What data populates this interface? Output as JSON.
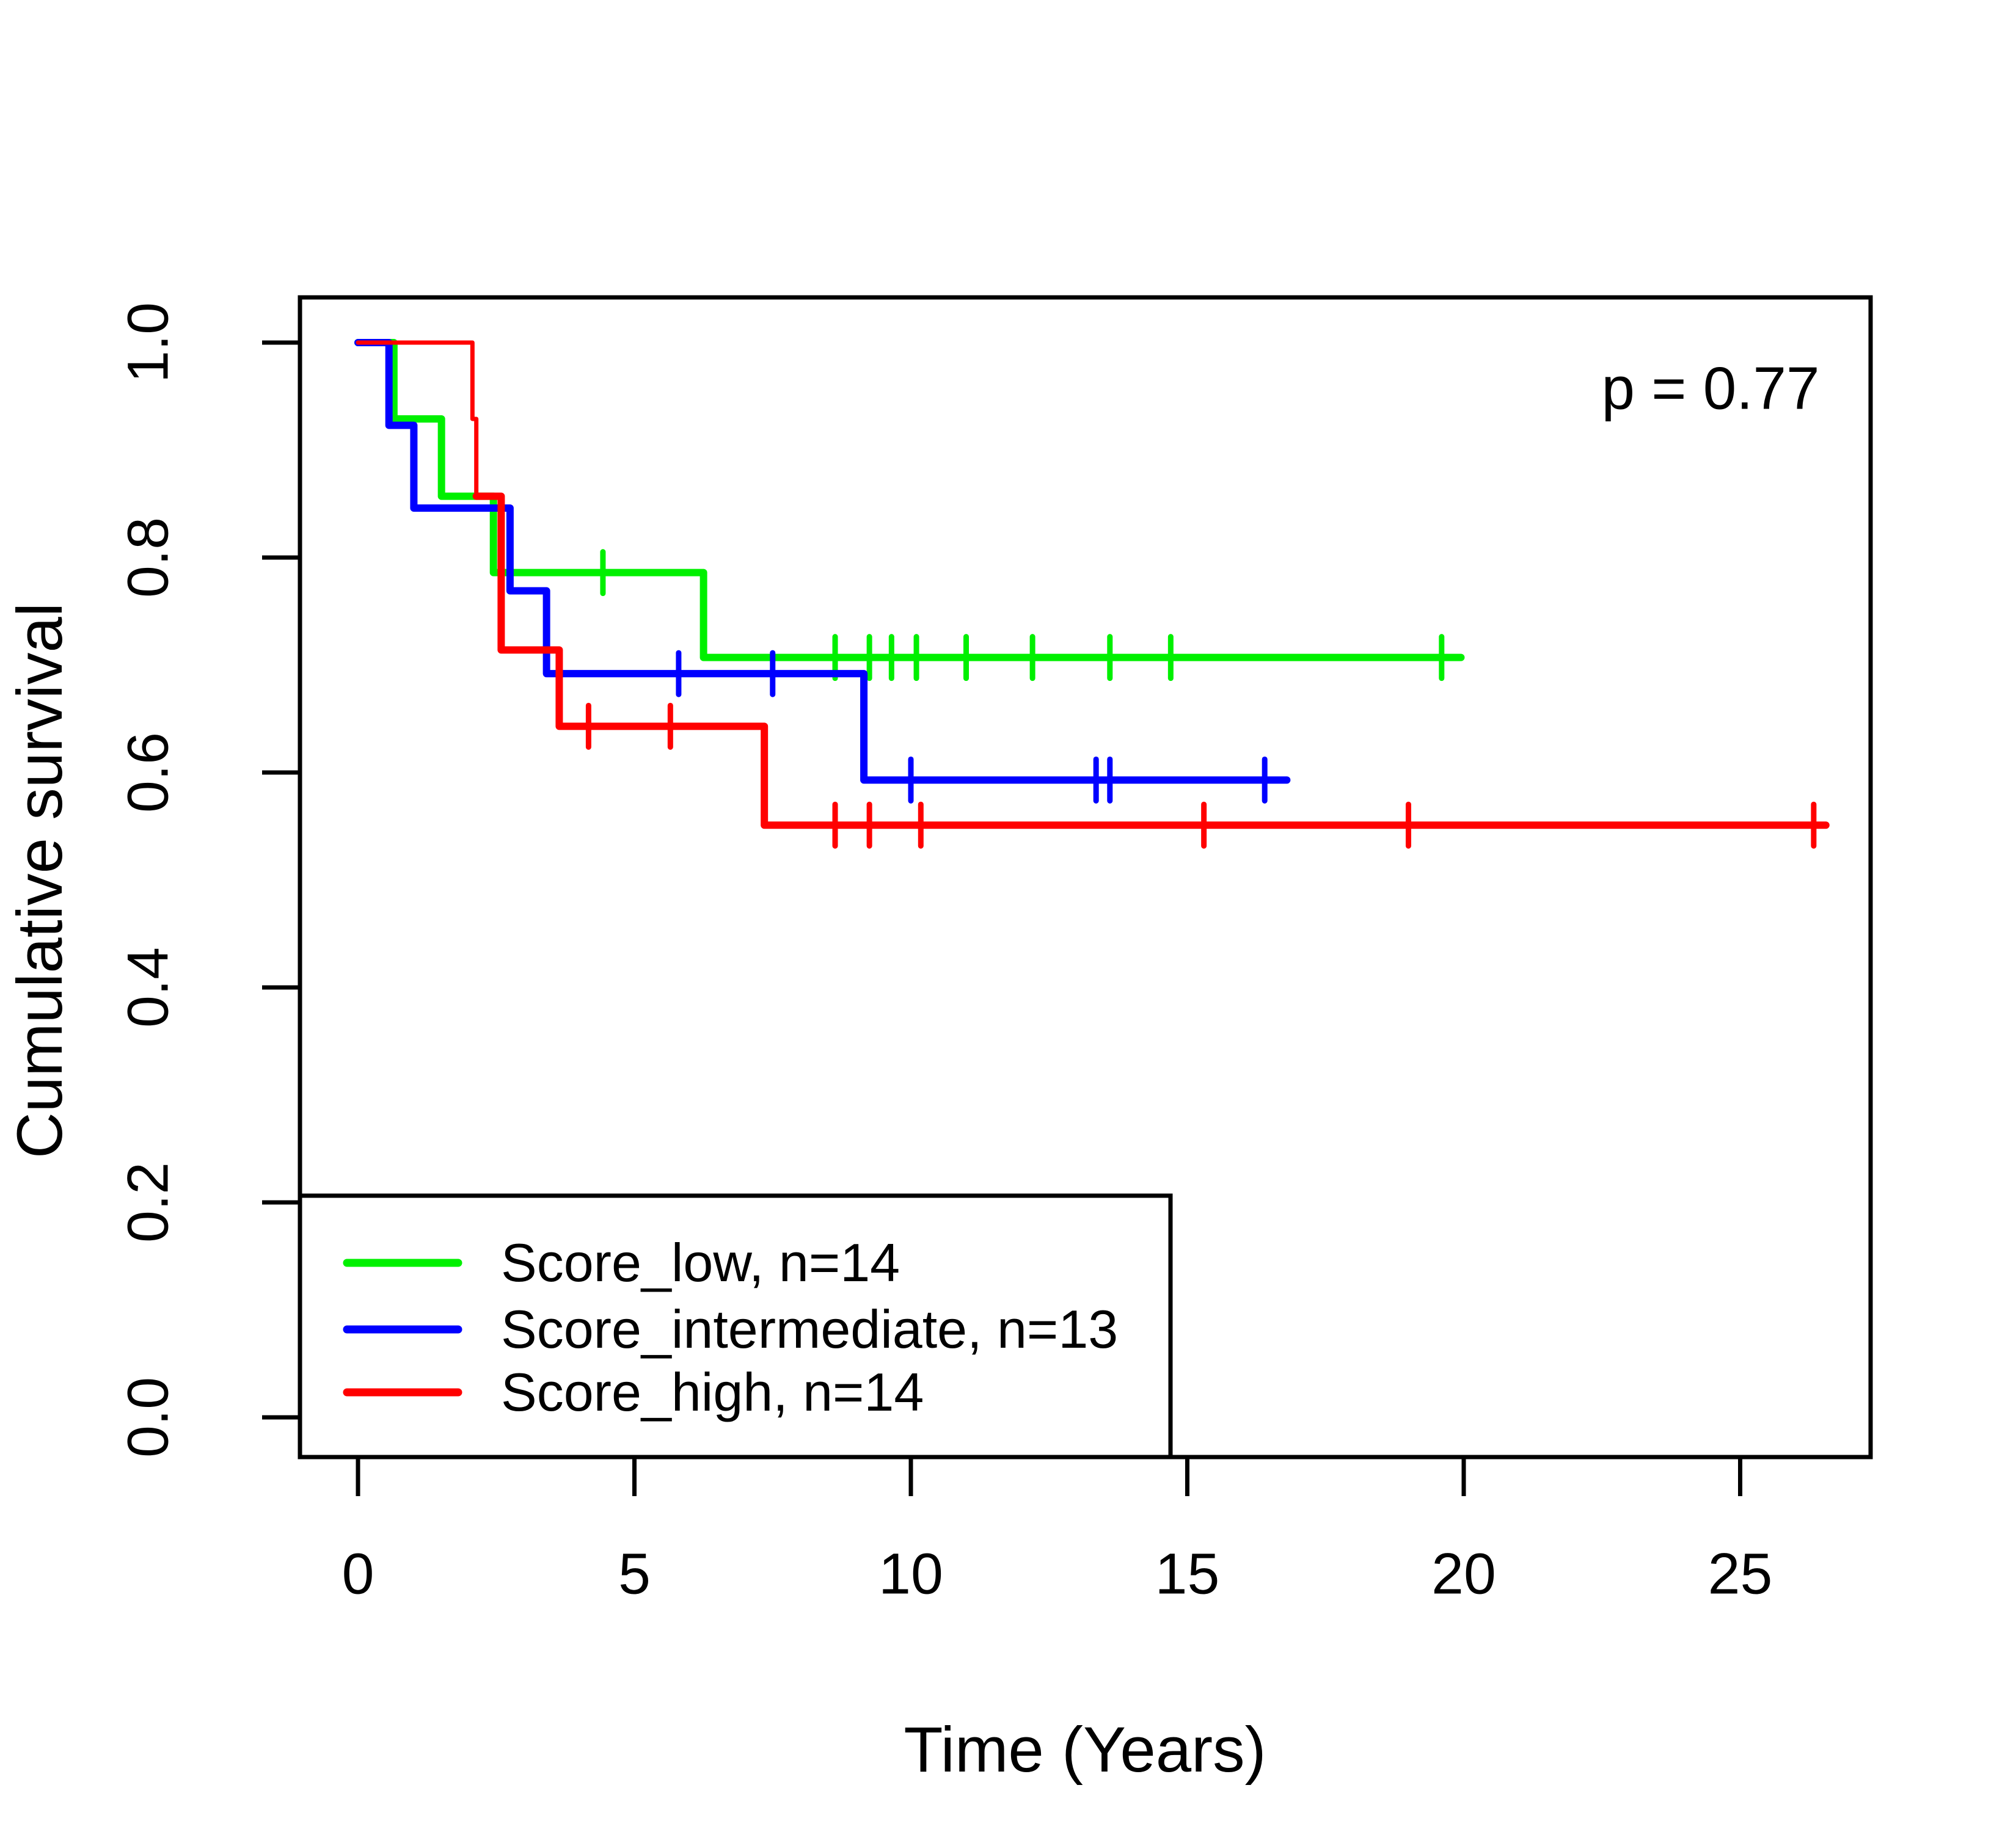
{
  "chart_data": {
    "type": "line",
    "subtype": "kaplan-meier-step-curves",
    "title": "",
    "xlabel": "Time (Years)",
    "ylabel": "Cumulative survival",
    "annotation": "p = 0.77",
    "grid": false,
    "legend_position": "bottom-left",
    "xlim": [
      0,
      27.4
    ],
    "ylim": [
      0.0,
      1.04
    ],
    "x_ticks": [
      {
        "label": "0",
        "value": 0
      },
      {
        "label": "5",
        "value": 5
      },
      {
        "label": "10",
        "value": 10
      },
      {
        "label": "15",
        "value": 15
      },
      {
        "label": "20",
        "value": 20
      },
      {
        "label": "25",
        "value": 25
      }
    ],
    "y_ticks": [
      {
        "label": "1.0",
        "value": 1.0
      },
      {
        "label": "0.8",
        "value": 0.8
      },
      {
        "label": "0.6",
        "value": 0.6
      },
      {
        "label": "0.4",
        "value": 0.4
      },
      {
        "label": "0.2",
        "value": 0.2
      },
      {
        "label": "0.0",
        "value": 0.0
      }
    ],
    "series": [
      {
        "key": "score-low",
        "name": "Score_low, n=14",
        "n": 14,
        "color": "#00f000",
        "start": [
          0,
          1.0
        ],
        "events": [
          [
            0.65,
            0.929
          ],
          [
            1.51,
            0.857
          ],
          [
            2.45,
            0.786
          ],
          [
            6.25,
            0.707
          ]
        ],
        "censors": [
          4.43,
          8.63,
          9.25,
          9.65,
          10.1,
          11.0,
          12.2,
          13.6,
          14.7,
          19.6
        ],
        "end_time": 19.95
      },
      {
        "key": "score-intermediate",
        "name": "Score_intermediate, n=13",
        "n": 13,
        "color": "#0000ff",
        "start": [
          0,
          1.0
        ],
        "events": [
          [
            0.56,
            0.923
          ],
          [
            1.01,
            0.846
          ],
          [
            2.75,
            0.769
          ],
          [
            3.41,
            0.692
          ],
          [
            9.15,
            0.593
          ]
        ],
        "censors": [
          5.8,
          7.5,
          10.0,
          13.35,
          13.6,
          16.4
        ],
        "end_time": 16.8
      },
      {
        "key": "score-high",
        "name": "Score_high, n=14",
        "n": 14,
        "color": "#ff0000",
        "start": [
          0,
          1.0
        ],
        "thin_events": [
          [
            2.07,
            0.929
          ],
          [
            2.14,
            0.857
          ]
        ],
        "events": [
          [
            2.59,
            0.714
          ],
          [
            3.64,
            0.643
          ],
          [
            7.35,
            0.551
          ]
        ],
        "censors": [
          4.17,
          5.65,
          8.63,
          9.25,
          10.18,
          15.3,
          19.0,
          26.33
        ],
        "end_time": 26.55
      }
    ]
  },
  "annotations": {
    "p_value": "p = 0.77"
  }
}
